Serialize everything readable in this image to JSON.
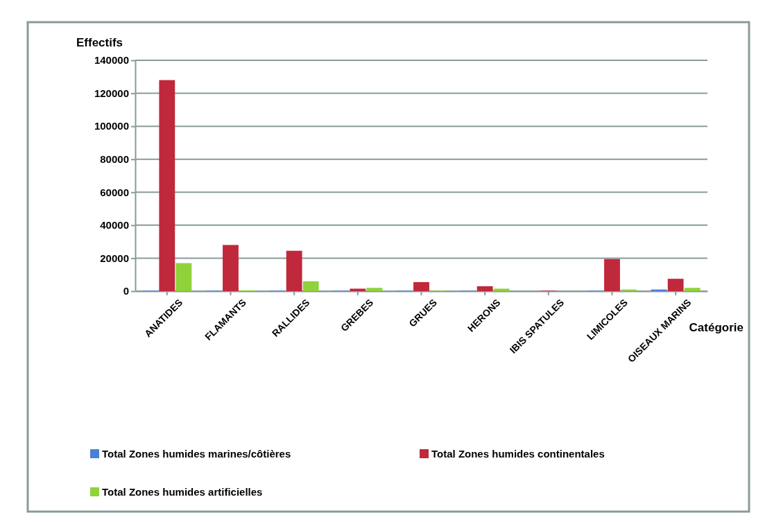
{
  "chart_data": {
    "type": "bar",
    "xlabel": "Catégorie",
    "ylabel": "Effectifs",
    "categories": [
      "ANATIDES",
      "FLAMANTS",
      "RALLIDES",
      "GREBES",
      "GRUES",
      "HERONS",
      "IBIS SPATULES",
      "LIMICOLES",
      "OISEAUX MARINS"
    ],
    "series": [
      {
        "name": "Total Zones humides marines/côtières",
        "color": "#4a7fd4",
        "values": [
          300,
          300,
          300,
          300,
          300,
          300,
          0,
          300,
          1000
        ]
      },
      {
        "name": "Total Zones humides continentales",
        "color": "#c0283c",
        "values": [
          128000,
          28000,
          24500,
          1500,
          5500,
          3000,
          300,
          19500,
          7500
        ]
      },
      {
        "name": "Total Zones humides artificielles",
        "color": "#8fd23a",
        "values": [
          17000,
          500,
          6000,
          2000,
          300,
          1500,
          0,
          1000,
          2000
        ]
      }
    ],
    "ylim": [
      0,
      140000
    ],
    "yticks": [
      0,
      20000,
      40000,
      60000,
      80000,
      100000,
      120000,
      140000
    ],
    "grid": "y",
    "legend": "bottom"
  }
}
